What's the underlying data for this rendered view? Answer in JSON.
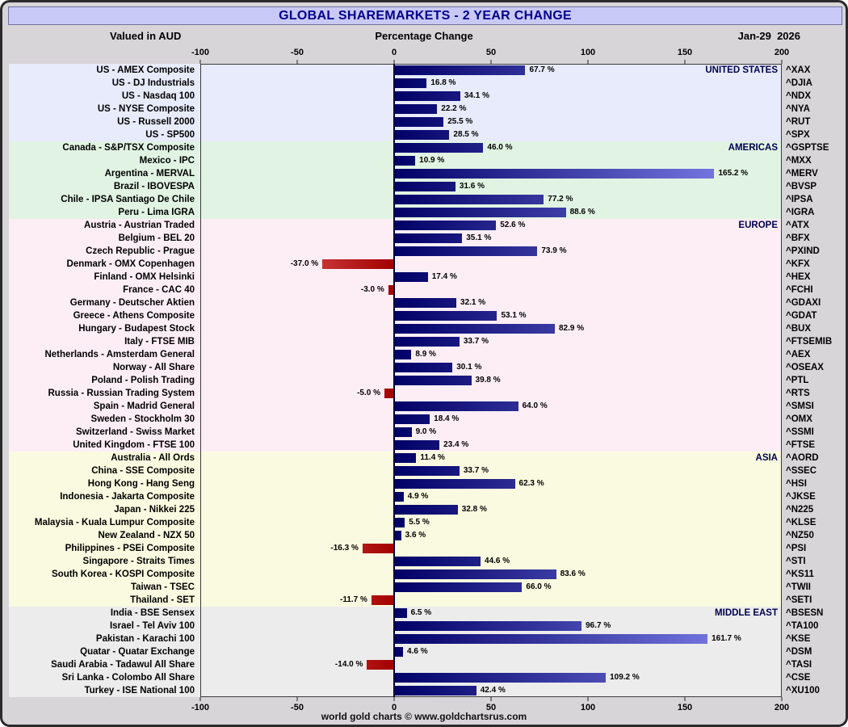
{
  "title": "GLOBAL SHAREMARKETS - 2 YEAR CHANGE",
  "subheader": {
    "left": "Valued in AUD",
    "center": "Percentage Change",
    "right": "Jan-29  2026"
  },
  "footer": "world gold charts © www.goldchartsrus.com",
  "colors": {
    "title_bg": "#c9c9f7",
    "title_text": "#00008b",
    "page_bg": "#d8d5d8",
    "bar_positive_dark": "#000066",
    "bar_positive_light": "#8c8cf8",
    "bar_negative_dark": "#a30000",
    "bar_negative_light": "#ff8a8a",
    "zero_line": "#000040",
    "region_label": "#00004f"
  },
  "chart_data": {
    "type": "bar",
    "orientation": "horizontal",
    "title": "GLOBAL SHAREMARKETS - 2 YEAR CHANGE",
    "xlabel": "Percentage Change",
    "ylabel": "",
    "legend": "none",
    "grid": "zero-axis-only",
    "axis": {
      "min": -100,
      "max": 200,
      "ticks": [
        -100,
        -50,
        0,
        50,
        100,
        150,
        200
      ]
    },
    "groups": [
      {
        "region": "UNITED STATES",
        "color": "#e7ebfb",
        "rows": [
          {
            "label": "US - AMEX Composite",
            "ticker": "^XAX",
            "value": 67.7,
            "display": "67.7 %"
          },
          {
            "label": "US - DJ Industrials",
            "ticker": "^DJIA",
            "value": 16.8,
            "display": "16.8 %"
          },
          {
            "label": "US - Nasdaq 100",
            "ticker": "^NDX",
            "value": 34.1,
            "display": "34.1 %"
          },
          {
            "label": "US - NYSE Composite",
            "ticker": "^NYA",
            "value": 22.2,
            "display": "22.2 %"
          },
          {
            "label": "US - Russell 2000",
            "ticker": "^RUT",
            "value": 25.5,
            "display": "25.5 %"
          },
          {
            "label": "US - SP500",
            "ticker": "^SPX",
            "value": 28.5,
            "display": "28.5 %"
          }
        ]
      },
      {
        "region": "AMERICAS",
        "color": "#e1f4e3",
        "rows": [
          {
            "label": "Canada - S&P/TSX Composite",
            "ticker": "^GSPTSE",
            "value": 46.0,
            "display": "46.0 %"
          },
          {
            "label": "Mexico - IPC",
            "ticker": "^MXX",
            "value": 10.9,
            "display": "10.9 %"
          },
          {
            "label": "Argentina - MERVAL",
            "ticker": "^MERV",
            "value": 165.2,
            "display": "165.2 %"
          },
          {
            "label": "Brazil - IBOVESPA",
            "ticker": "^BVSP",
            "value": 31.6,
            "display": "31.6 %"
          },
          {
            "label": "Chile - IPSA Santiago De Chile",
            "ticker": "^IPSA",
            "value": 77.2,
            "display": "77.2 %"
          },
          {
            "label": "Peru - Lima IGRA",
            "ticker": "^IGRA",
            "value": 88.6,
            "display": "88.6 %"
          }
        ]
      },
      {
        "region": "EUROPE",
        "color": "#fdeef6",
        "rows": [
          {
            "label": "Austria - Austrian Traded",
            "ticker": "^ATX",
            "value": 52.6,
            "display": "52.6 %"
          },
          {
            "label": "Belgium - BEL 20",
            "ticker": "^BFX",
            "value": 35.1,
            "display": "35.1 %"
          },
          {
            "label": "Czech Republic - Prague",
            "ticker": "^PXIND",
            "value": 73.9,
            "display": "73.9 %"
          },
          {
            "label": "Denmark - OMX Copenhagen",
            "ticker": "^KFX",
            "value": -37.0,
            "display": "-37.0 %"
          },
          {
            "label": "Finland - OMX Helsinki",
            "ticker": "^HEX",
            "value": 17.4,
            "display": "17.4 %"
          },
          {
            "label": "France - CAC 40",
            "ticker": "^FCHI",
            "value": -3.0,
            "display": "-3.0 %"
          },
          {
            "label": "Germany - Deutscher Aktien",
            "ticker": "^GDAXI",
            "value": 32.1,
            "display": "32.1 %"
          },
          {
            "label": "Greece - Athens Composite",
            "ticker": "^GDAT",
            "value": 53.1,
            "display": "53.1 %"
          },
          {
            "label": "Hungary - Budapest Stock",
            "ticker": "^BUX",
            "value": 82.9,
            "display": "82.9 %"
          },
          {
            "label": "Italy - FTSE MIB",
            "ticker": "^FTSEMIB",
            "value": 33.7,
            "display": "33.7 %"
          },
          {
            "label": "Netherlands - Amsterdam General",
            "ticker": "^AEX",
            "value": 8.9,
            "display": "8.9 %"
          },
          {
            "label": "Norway - All Share",
            "ticker": "^OSEAX",
            "value": 30.1,
            "display": "30.1 %"
          },
          {
            "label": "Poland - Polish Trading",
            "ticker": "^PTL",
            "value": 39.8,
            "display": "39.8 %"
          },
          {
            "label": "Russia - Russian Trading System",
            "ticker": "^RTS",
            "value": -5.0,
            "display": "-5.0 %"
          },
          {
            "label": "Spain - Madrid General",
            "ticker": "^SMSI",
            "value": 64.0,
            "display": "64.0 %"
          },
          {
            "label": "Sweden - Stockholm 30",
            "ticker": "^OMX",
            "value": 18.4,
            "display": "18.4 %"
          },
          {
            "label": "Switzerland - Swiss Market",
            "ticker": "^SSMI",
            "value": 9.0,
            "display": "9.0 %"
          },
          {
            "label": "United Kingdom - FTSE 100",
            "ticker": "^FTSE",
            "value": 23.4,
            "display": "23.4 %"
          }
        ]
      },
      {
        "region": "ASIA",
        "color": "#fafae0",
        "rows": [
          {
            "label": "Australia - All Ords",
            "ticker": "^AORD",
            "value": 11.4,
            "display": "11.4 %"
          },
          {
            "label": "China - SSE Composite",
            "ticker": "^SSEC",
            "value": 33.7,
            "display": "33.7 %"
          },
          {
            "label": "Hong Kong - Hang Seng",
            "ticker": "^HSI",
            "value": 62.3,
            "display": "62.3 %"
          },
          {
            "label": "Indonesia - Jakarta Composite",
            "ticker": "^JKSE",
            "value": 4.9,
            "display": "4.9 %"
          },
          {
            "label": "Japan - Nikkei 225",
            "ticker": "^N225",
            "value": 32.8,
            "display": "32.8 %"
          },
          {
            "label": "Malaysia - Kuala Lumpur Composite",
            "ticker": "^KLSE",
            "value": 5.5,
            "display": "5.5 %"
          },
          {
            "label": "New Zealand - NZX 50",
            "ticker": "^NZ50",
            "value": 3.6,
            "display": "3.6 %"
          },
          {
            "label": "Philippines - PSEi Composite",
            "ticker": "^PSI",
            "value": -16.3,
            "display": "-16.3 %"
          },
          {
            "label": "Singapore - Straits Times",
            "ticker": "^STI",
            "value": 44.6,
            "display": "44.6 %"
          },
          {
            "label": "South Korea - KOSPI Composite",
            "ticker": "^KS11",
            "value": 83.6,
            "display": "83.6 %"
          },
          {
            "label": "Taiwan - TSEC",
            "ticker": "^TWII",
            "value": 66.0,
            "display": "66.0 %"
          },
          {
            "label": "Thailand - SET",
            "ticker": "^SETI",
            "value": -11.7,
            "display": "-11.7 %"
          }
        ]
      },
      {
        "region": "MIDDLE EAST",
        "color": "#ececec",
        "rows": [
          {
            "label": "India - BSE Sensex",
            "ticker": "^BSESN",
            "value": 6.5,
            "display": "6.5 %"
          },
          {
            "label": "Israel - Tel Aviv 100",
            "ticker": "^TA100",
            "value": 96.7,
            "display": "96.7 %"
          },
          {
            "label": "Pakistan - Karachi 100",
            "ticker": "^KSE",
            "value": 161.7,
            "display": "161.7 %"
          },
          {
            "label": "Quatar - Quatar Exchange",
            "ticker": "^DSM",
            "value": 4.6,
            "display": "4.6 %"
          },
          {
            "label": "Saudi Arabia - Tadawul All Share",
            "ticker": "^TASI",
            "value": -14.0,
            "display": "-14.0 %"
          },
          {
            "label": "Sri Lanka - Colombo All Share",
            "ticker": "^CSE",
            "value": 109.2,
            "display": "109.2 %"
          },
          {
            "label": "Turkey - ISE National 100",
            "ticker": "^XU100",
            "value": 42.4,
            "display": "42.4 %"
          }
        ]
      }
    ]
  }
}
